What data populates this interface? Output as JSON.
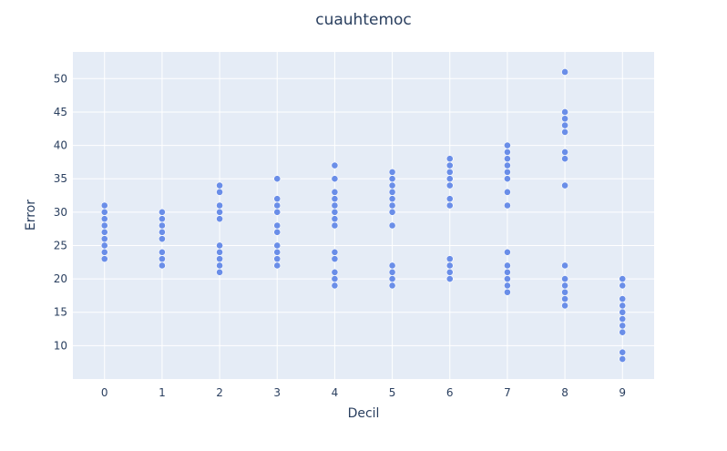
{
  "chart_data": {
    "type": "scatter",
    "title": "cuauhtemoc",
    "xlabel": "Decil",
    "ylabel": "Error",
    "xlim": [
      -0.55,
      9.55
    ],
    "ylim": [
      5,
      54
    ],
    "xticks": [
      0,
      1,
      2,
      3,
      4,
      5,
      6,
      7,
      8,
      9
    ],
    "yticks": [
      10,
      15,
      20,
      25,
      30,
      35,
      40,
      45,
      50
    ],
    "grid": true,
    "legend": "none",
    "colors": {
      "marker": "#6a8ee8",
      "plot_bg": "#e5ecf6",
      "text": "#2a3f5f"
    },
    "series": [
      {
        "points": [
          [
            0,
            23
          ],
          [
            0,
            24
          ],
          [
            0,
            25
          ],
          [
            0,
            26
          ],
          [
            0,
            27
          ],
          [
            0,
            28
          ],
          [
            0,
            29
          ],
          [
            0,
            30
          ],
          [
            0,
            31
          ],
          [
            1,
            22
          ],
          [
            1,
            23
          ],
          [
            1,
            24
          ],
          [
            1,
            26
          ],
          [
            1,
            27
          ],
          [
            1,
            28
          ],
          [
            1,
            29
          ],
          [
            1,
            30
          ],
          [
            2,
            21
          ],
          [
            2,
            22
          ],
          [
            2,
            23
          ],
          [
            2,
            24
          ],
          [
            2,
            25
          ],
          [
            2,
            29
          ],
          [
            2,
            30
          ],
          [
            2,
            31
          ],
          [
            2,
            33
          ],
          [
            2,
            34
          ],
          [
            3,
            22
          ],
          [
            3,
            23
          ],
          [
            3,
            24
          ],
          [
            3,
            25
          ],
          [
            3,
            27
          ],
          [
            3,
            28
          ],
          [
            3,
            30
          ],
          [
            3,
            31
          ],
          [
            3,
            32
          ],
          [
            3,
            35
          ],
          [
            4,
            19
          ],
          [
            4,
            20
          ],
          [
            4,
            21
          ],
          [
            4,
            23
          ],
          [
            4,
            24
          ],
          [
            4,
            28
          ],
          [
            4,
            29
          ],
          [
            4,
            30
          ],
          [
            4,
            31
          ],
          [
            4,
            32
          ],
          [
            4,
            33
          ],
          [
            4,
            35
          ],
          [
            4,
            37
          ],
          [
            5,
            19
          ],
          [
            5,
            20
          ],
          [
            5,
            21
          ],
          [
            5,
            22
          ],
          [
            5,
            28
          ],
          [
            5,
            30
          ],
          [
            5,
            31
          ],
          [
            5,
            32
          ],
          [
            5,
            33
          ],
          [
            5,
            34
          ],
          [
            5,
            35
          ],
          [
            5,
            36
          ],
          [
            6,
            20
          ],
          [
            6,
            21
          ],
          [
            6,
            22
          ],
          [
            6,
            23
          ],
          [
            6,
            31
          ],
          [
            6,
            32
          ],
          [
            6,
            34
          ],
          [
            6,
            35
          ],
          [
            6,
            36
          ],
          [
            6,
            37
          ],
          [
            6,
            38
          ],
          [
            7,
            18
          ],
          [
            7,
            19
          ],
          [
            7,
            20
          ],
          [
            7,
            21
          ],
          [
            7,
            22
          ],
          [
            7,
            24
          ],
          [
            7,
            31
          ],
          [
            7,
            33
          ],
          [
            7,
            35
          ],
          [
            7,
            36
          ],
          [
            7,
            37
          ],
          [
            7,
            38
          ],
          [
            7,
            39
          ],
          [
            7,
            40
          ],
          [
            8,
            16
          ],
          [
            8,
            17
          ],
          [
            8,
            18
          ],
          [
            8,
            19
          ],
          [
            8,
            20
          ],
          [
            8,
            22
          ],
          [
            8,
            34
          ],
          [
            8,
            38
          ],
          [
            8,
            39
          ],
          [
            8,
            42
          ],
          [
            8,
            43
          ],
          [
            8,
            44
          ],
          [
            8,
            45
          ],
          [
            8,
            51
          ],
          [
            9,
            8
          ],
          [
            9,
            9
          ],
          [
            9,
            12
          ],
          [
            9,
            13
          ],
          [
            9,
            14
          ],
          [
            9,
            15
          ],
          [
            9,
            16
          ],
          [
            9,
            17
          ],
          [
            9,
            19
          ],
          [
            9,
            20
          ]
        ]
      }
    ]
  }
}
